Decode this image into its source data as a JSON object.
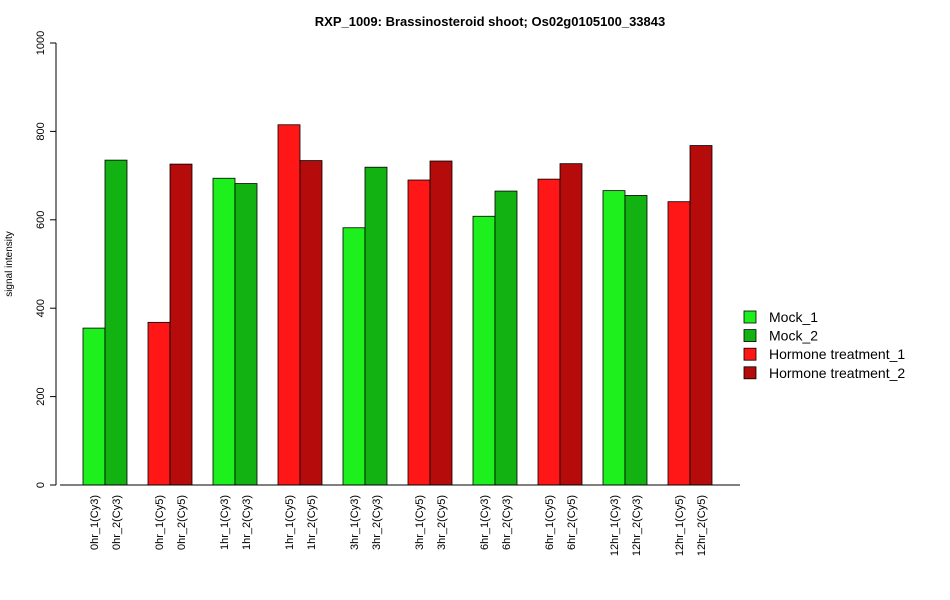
{
  "chart_data": {
    "type": "bar",
    "title": "RXP_1009: Brassinosteroid shoot; Os02g0105100_33843",
    "ylabel": "signal intensity",
    "xlabel": "",
    "ylim": [
      0,
      1000
    ],
    "yticks": [
      0,
      200,
      400,
      600,
      800,
      1000
    ],
    "grid": false,
    "legend_position": "right",
    "series_styles": [
      {
        "name": "Mock_1",
        "color": "#1ef01e"
      },
      {
        "name": "Mock_2",
        "color": "#12b212"
      },
      {
        "name": "Hormone treatment_1",
        "color": "#ff1717"
      },
      {
        "name": "Hormone treatment_2",
        "color": "#b50b0b"
      }
    ],
    "groups": [
      {
        "bars": [
          {
            "label": "0hr_1(Cy3)",
            "value": 355,
            "series": 0
          },
          {
            "label": "0hr_2(Cy3)",
            "value": 735,
            "series": 1
          }
        ]
      },
      {
        "bars": [
          {
            "label": "0hr_1(Cy5)",
            "value": 368,
            "series": 2
          },
          {
            "label": "0hr_2(Cy5)",
            "value": 726,
            "series": 3
          }
        ]
      },
      {
        "bars": [
          {
            "label": "1hr_1(Cy3)",
            "value": 694,
            "series": 0
          },
          {
            "label": "1hr_2(Cy3)",
            "value": 682,
            "series": 1
          }
        ]
      },
      {
        "bars": [
          {
            "label": "1hr_1(Cy5)",
            "value": 815,
            "series": 2
          },
          {
            "label": "1hr_2(Cy5)",
            "value": 734,
            "series": 3
          }
        ]
      },
      {
        "bars": [
          {
            "label": "3hr_1(Cy3)",
            "value": 582,
            "series": 0
          },
          {
            "label": "3hr_2(Cy3)",
            "value": 719,
            "series": 1
          }
        ]
      },
      {
        "bars": [
          {
            "label": "3hr_1(Cy5)",
            "value": 690,
            "series": 2
          },
          {
            "label": "3hr_2(Cy5)",
            "value": 733,
            "series": 3
          }
        ]
      },
      {
        "bars": [
          {
            "label": "6hr_1(Cy3)",
            "value": 608,
            "series": 0
          },
          {
            "label": "6hr_2(Cy3)",
            "value": 665,
            "series": 1
          }
        ]
      },
      {
        "bars": [
          {
            "label": "6hr_1(Cy5)",
            "value": 692,
            "series": 2
          },
          {
            "label": "6hr_2(Cy5)",
            "value": 727,
            "series": 3
          }
        ]
      },
      {
        "bars": [
          {
            "label": "12hr_1(Cy3)",
            "value": 666,
            "series": 0
          },
          {
            "label": "12hr_2(Cy3)",
            "value": 655,
            "series": 1
          }
        ]
      },
      {
        "bars": [
          {
            "label": "12hr_1(Cy5)",
            "value": 641,
            "series": 2
          },
          {
            "label": "12hr_2(Cy5)",
            "value": 768,
            "series": 3
          }
        ]
      }
    ]
  }
}
